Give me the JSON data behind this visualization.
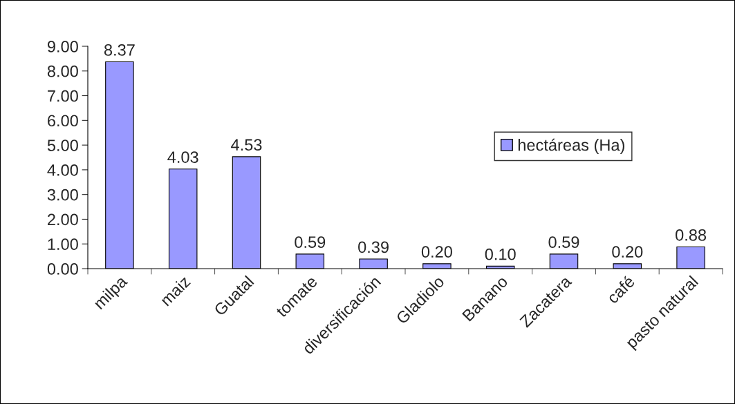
{
  "chart_data": {
    "type": "bar",
    "categories": [
      "milpa",
      "maiz",
      "Guatal",
      "tomate",
      "diversificación",
      "Gladiolo",
      "Banano",
      "Zacatera",
      "café",
      "pasto natural"
    ],
    "series": [
      {
        "name": "hectáreas (Ha)",
        "color": "#9999ff",
        "values": [
          8.37,
          4.03,
          4.53,
          0.59,
          0.39,
          0.2,
          0.1,
          0.59,
          0.2,
          0.88
        ],
        "value_labels": [
          "8.37",
          "4.03",
          "4.53",
          "0.59",
          "0.39",
          "0.20",
          "0.10",
          "0.59",
          "0.20",
          "0.88"
        ]
      }
    ],
    "ylim": [
      0,
      9
    ],
    "yticks": [
      {
        "value": 0,
        "label": "0.00"
      },
      {
        "value": 1,
        "label": "1.00"
      },
      {
        "value": 2,
        "label": "2.00"
      },
      {
        "value": 3,
        "label": "3.00"
      },
      {
        "value": 4,
        "label": "4.00"
      },
      {
        "value": 5,
        "label": "5.00"
      },
      {
        "value": 6,
        "label": "6.00"
      },
      {
        "value": 7,
        "label": "7.00"
      },
      {
        "value": 8,
        "label": "8.00"
      },
      {
        "value": 9,
        "label": "9.00"
      }
    ],
    "grid": false,
    "legend": "center right"
  }
}
